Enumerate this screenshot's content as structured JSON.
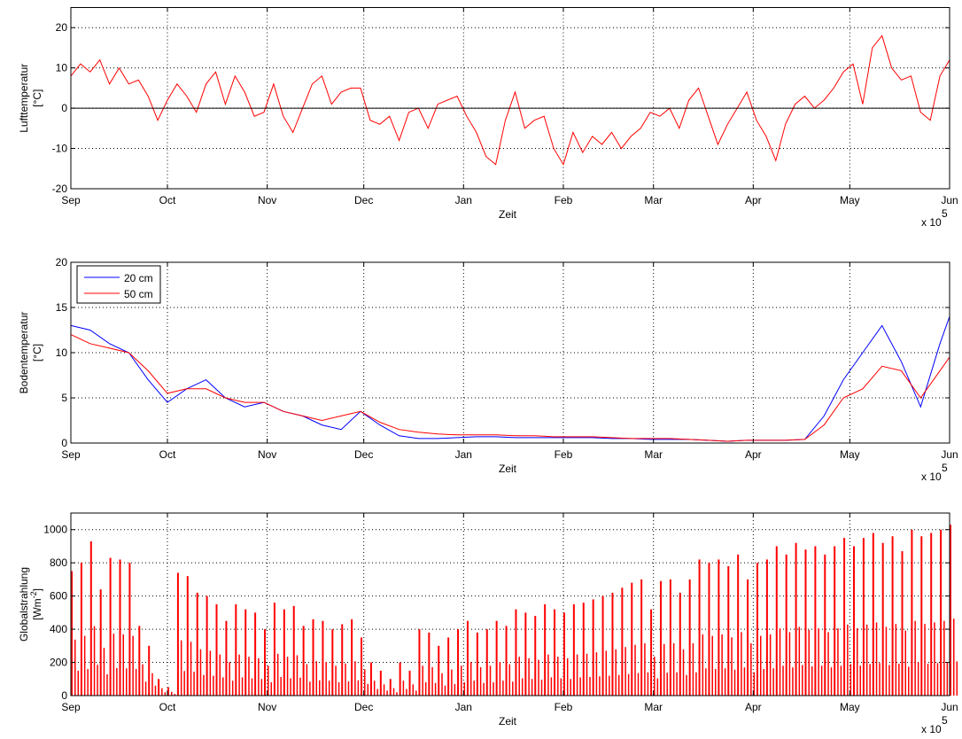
{
  "chart_data": [
    {
      "type": "line",
      "title": "",
      "xlabel": "Zeit",
      "ylabel": [
        "Lufttemperatur",
        "[°C]"
      ],
      "x_exponent_label": "x 10",
      "x_exponent": "5",
      "xlim_days": [
        0,
        273
      ],
      "ylim": [
        -20,
        25
      ],
      "yticks": [
        -20,
        -10,
        0,
        10,
        20
      ],
      "grid": true,
      "zero_line": true,
      "month_ticks": [
        "Sep",
        "Oct",
        "Nov",
        "Dec",
        "Jan",
        "Feb",
        "Mar",
        "Apr",
        "May",
        "Jun"
      ],
      "month_days": [
        0,
        30,
        61,
        91,
        122,
        153,
        181,
        212,
        242,
        273
      ],
      "series": [
        {
          "name": "Lufttemperatur",
          "color": "#ff0000",
          "x_step_days": 3,
          "values": [
            8,
            11,
            9,
            12,
            6,
            10,
            6,
            7,
            3,
            -3,
            2,
            6,
            3,
            -1,
            6,
            9,
            1,
            8,
            4,
            -2,
            -1,
            6,
            -2,
            -6,
            0,
            6,
            8,
            1,
            4,
            5,
            5,
            -3,
            -4,
            -2,
            -8,
            -1,
            0,
            -5,
            1,
            2,
            3,
            -2,
            -6,
            -12,
            -14,
            -3,
            4,
            -5,
            -3,
            -2,
            -10,
            -14,
            -6,
            -11,
            -7,
            -9,
            -6,
            -10,
            -7,
            -5,
            -1,
            -2,
            0,
            -5,
            2,
            5,
            -2,
            -9,
            -4,
            0,
            4,
            -3,
            -7,
            -13,
            -4,
            1,
            3,
            0,
            2,
            5,
            9,
            11,
            1,
            15,
            18,
            10,
            7,
            8,
            -1,
            -3,
            8,
            12
          ]
        }
      ]
    },
    {
      "type": "line",
      "title": "",
      "xlabel": "Zeit",
      "ylabel": [
        "Bodentemperatur",
        "[°C]"
      ],
      "x_exponent_label": "x 10",
      "x_exponent": "5",
      "xlim_days": [
        0,
        273
      ],
      "ylim": [
        0,
        20
      ],
      "yticks": [
        0,
        5,
        10,
        15,
        20
      ],
      "grid": true,
      "legend": "top-left",
      "month_ticks": [
        "Sep",
        "Oct",
        "Nov",
        "Dec",
        "Jan",
        "Feb",
        "Mar",
        "Apr",
        "May",
        "Jun"
      ],
      "month_days": [
        0,
        30,
        61,
        91,
        122,
        153,
        181,
        212,
        242,
        273
      ],
      "series": [
        {
          "name": "20 cm",
          "color": "#0000ff",
          "x_days": [
            0,
            6,
            12,
            18,
            24,
            30,
            36,
            42,
            48,
            54,
            60,
            66,
            72,
            78,
            84,
            90,
            96,
            102,
            108,
            114,
            120,
            126,
            132,
            138,
            144,
            150,
            156,
            162,
            168,
            174,
            180,
            186,
            192,
            198,
            204,
            210,
            216,
            222,
            228,
            234,
            240,
            246,
            252,
            258,
            264,
            270,
            273
          ],
          "values": [
            13,
            12.5,
            11,
            10,
            7,
            4.5,
            6,
            7,
            5,
            4,
            4.5,
            3.5,
            3,
            2,
            1.5,
            3.5,
            2,
            0.8,
            0.5,
            0.5,
            0.6,
            0.7,
            0.7,
            0.6,
            0.6,
            0.6,
            0.6,
            0.6,
            0.5,
            0.5,
            0.4,
            0.4,
            0.4,
            0.3,
            0.2,
            0.3,
            0.3,
            0.3,
            0.4,
            3,
            7,
            10,
            13,
            9,
            4,
            11,
            14
          ]
        },
        {
          "name": "50 cm",
          "color": "#ff0000",
          "x_days": [
            0,
            6,
            12,
            18,
            24,
            30,
            36,
            42,
            48,
            54,
            60,
            66,
            72,
            78,
            84,
            90,
            96,
            102,
            108,
            114,
            120,
            126,
            132,
            138,
            144,
            150,
            156,
            162,
            168,
            174,
            180,
            186,
            192,
            198,
            204,
            210,
            216,
            222,
            228,
            234,
            240,
            246,
            252,
            258,
            264,
            270,
            273
          ],
          "values": [
            12,
            11,
            10.5,
            10,
            8,
            5.5,
            6,
            6,
            5,
            4.5,
            4.5,
            3.5,
            3,
            2.5,
            3,
            3.5,
            2.3,
            1.5,
            1.2,
            1,
            0.9,
            0.9,
            0.9,
            0.8,
            0.8,
            0.7,
            0.7,
            0.7,
            0.6,
            0.5,
            0.5,
            0.5,
            0.4,
            0.3,
            0.2,
            0.3,
            0.3,
            0.3,
            0.4,
            2,
            5,
            6,
            8.5,
            8,
            5,
            8,
            9.5
          ]
        }
      ]
    },
    {
      "type": "bar",
      "title": "",
      "xlabel": "Zeit",
      "ylabel": [
        "Globalstrahlung",
        "[Wm",
        "-2",
        "]"
      ],
      "x_exponent_label": "x 10",
      "x_exponent": "5",
      "xlim_days": [
        0,
        273
      ],
      "ylim": [
        0,
        1100
      ],
      "yticks": [
        0,
        200,
        400,
        600,
        800,
        1000
      ],
      "grid": true,
      "month_ticks": [
        "Sep",
        "Oct",
        "Nov",
        "Dec",
        "Jan",
        "Feb",
        "Mar",
        "Apr",
        "May",
        "Jun"
      ],
      "month_days": [
        0,
        30,
        61,
        91,
        122,
        153,
        181,
        212,
        242,
        273
      ],
      "series": [
        {
          "name": "Globalstrahlung",
          "color": "#ff0000",
          "x_step_days": 3,
          "values": [
            750,
            800,
            930,
            640,
            830,
            820,
            800,
            420,
            300,
            100,
            50,
            740,
            720,
            620,
            600,
            550,
            450,
            550,
            520,
            500,
            400,
            560,
            520,
            540,
            420,
            460,
            450,
            400,
            430,
            460,
            350,
            200,
            150,
            100,
            200,
            150,
            400,
            380,
            300,
            350,
            400,
            450,
            380,
            400,
            450,
            420,
            520,
            500,
            480,
            550,
            520,
            500,
            550,
            560,
            580,
            600,
            620,
            650,
            680,
            700,
            520,
            690,
            700,
            620,
            700,
            820,
            800,
            820,
            780,
            850,
            700,
            800,
            820,
            900,
            850,
            920,
            880,
            900,
            850,
            900,
            950,
            900,
            950,
            980,
            920,
            960,
            870,
            1000,
            960,
            980,
            1000,
            1030
          ]
        }
      ]
    }
  ]
}
